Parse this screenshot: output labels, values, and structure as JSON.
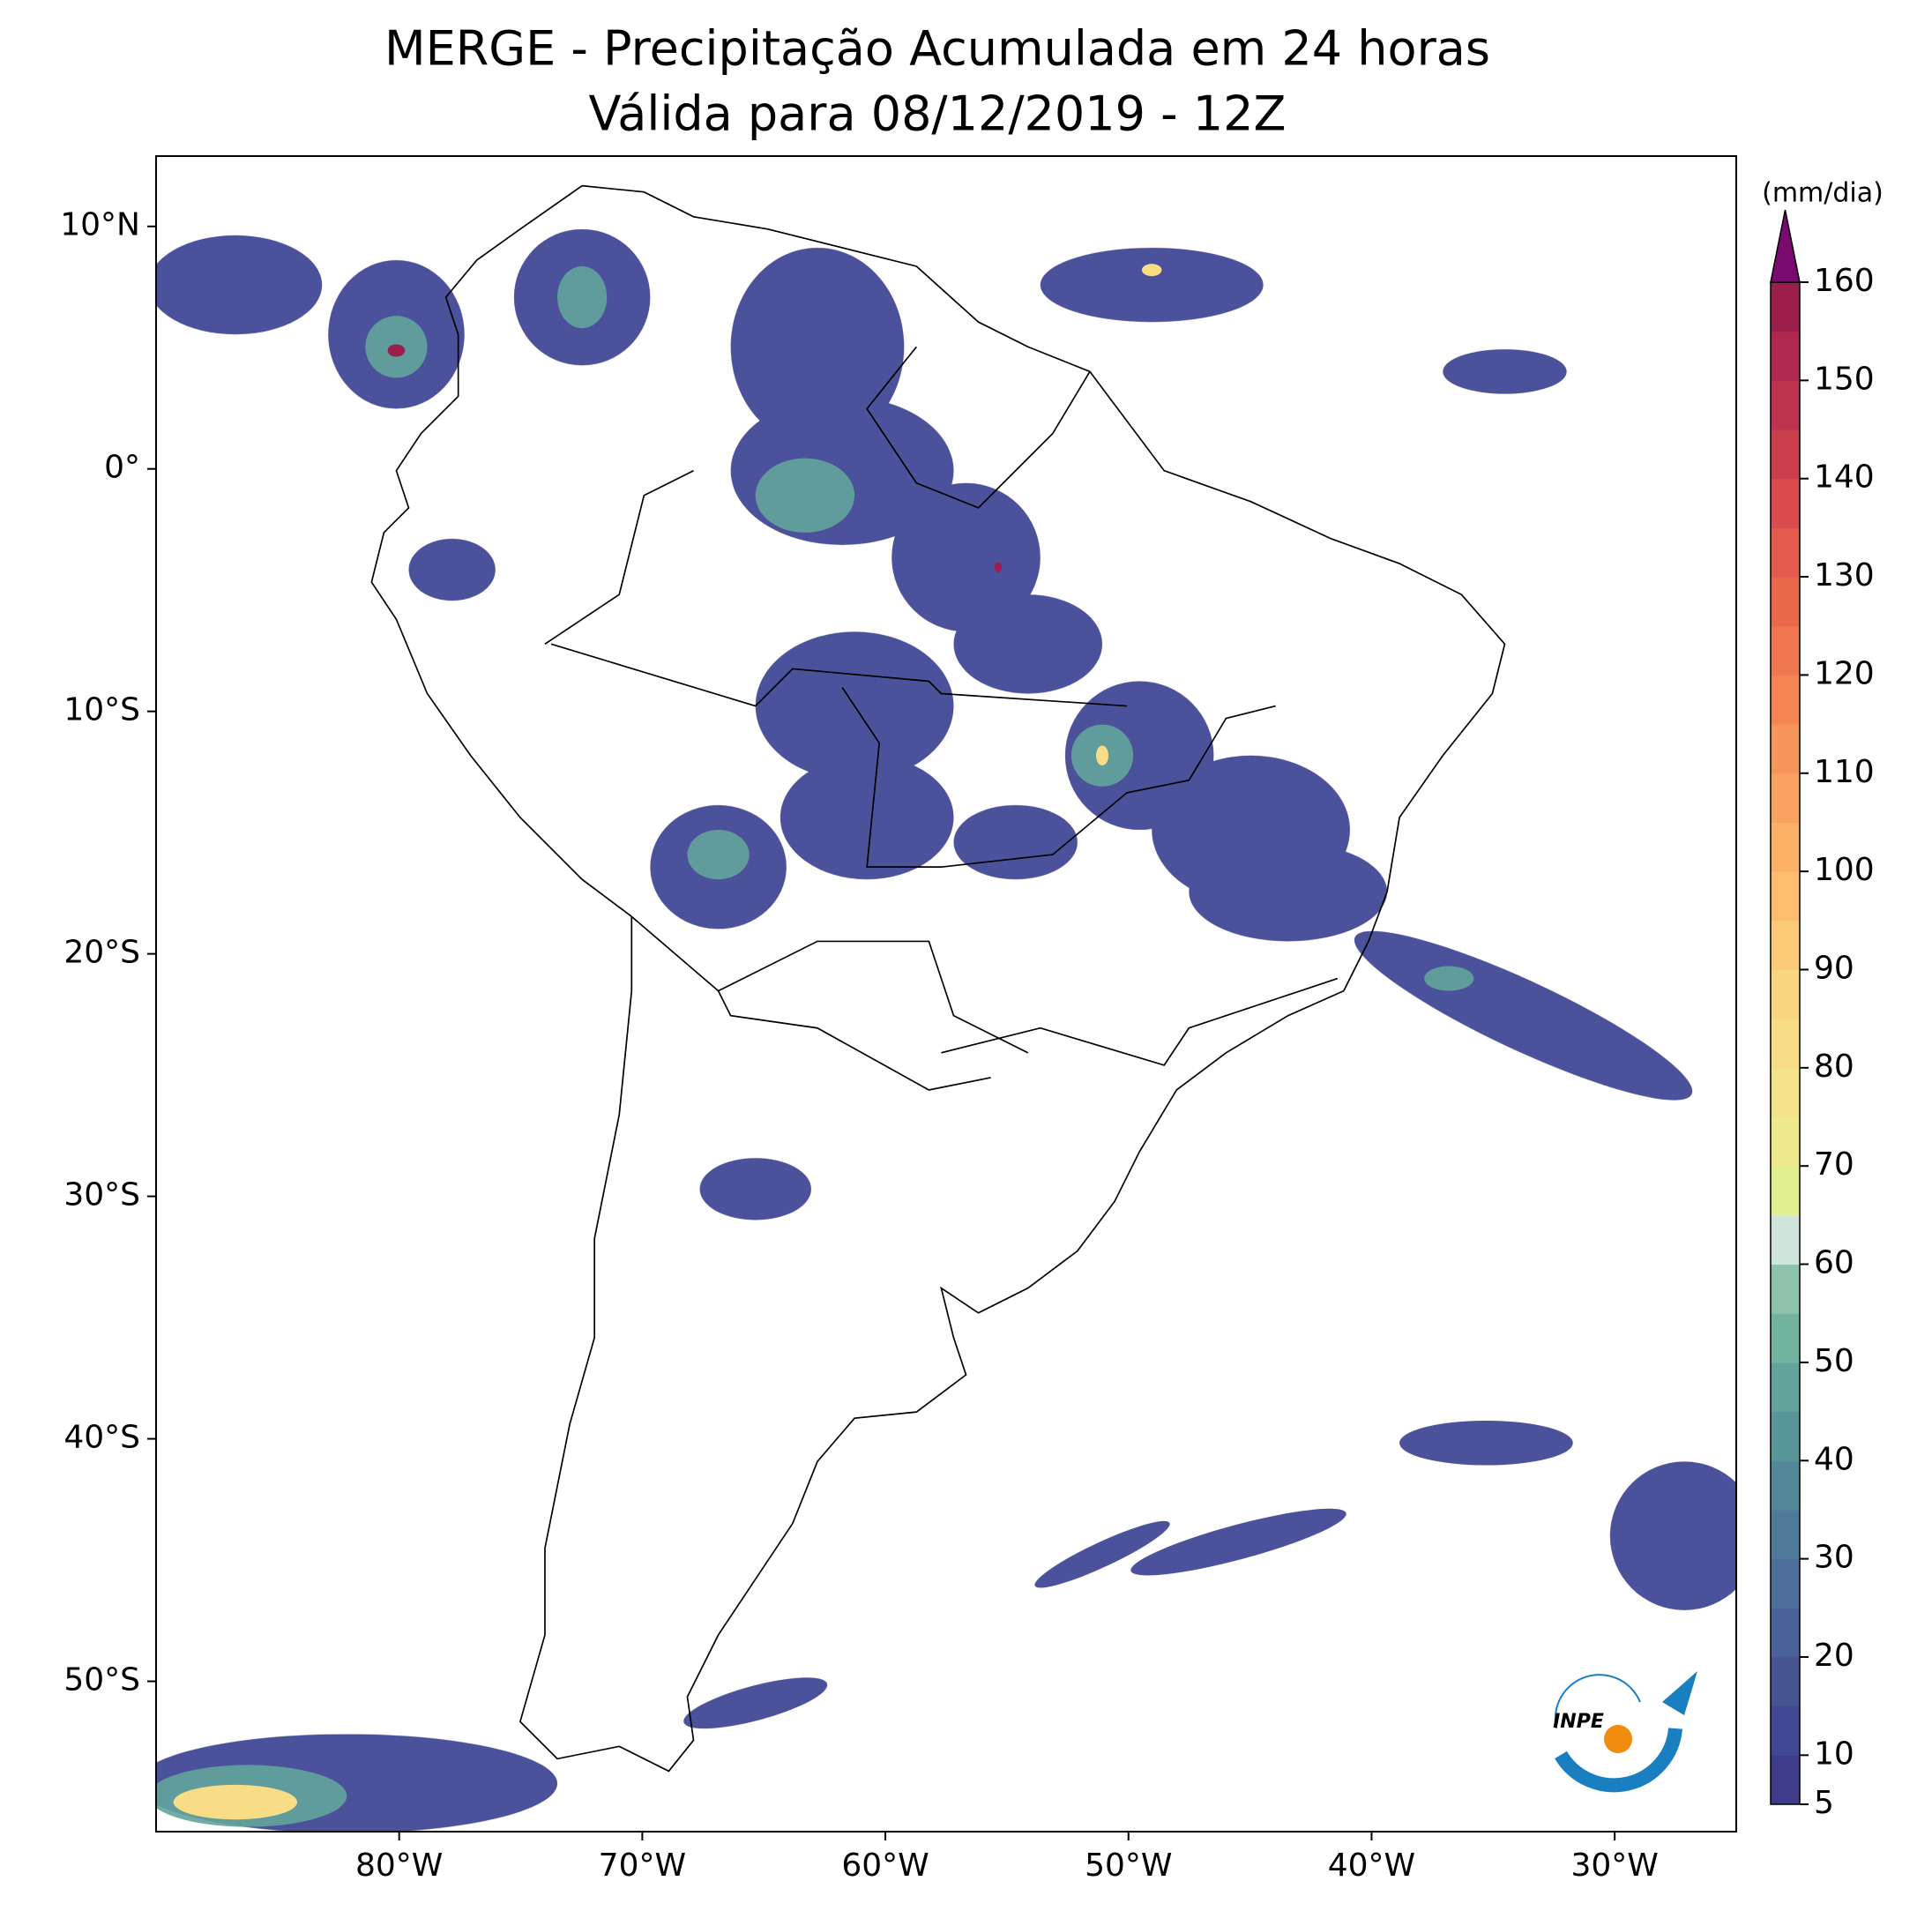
{
  "title": "MERGE - Precipitação Acumulada em 24 horas",
  "subtitle": "Válida para 08/12/2019 - 12Z",
  "map": {
    "xlim": [
      -90,
      -25
    ],
    "ylim": [
      -56.2,
      12.9
    ],
    "xticks": [
      {
        "value": -80,
        "label": "80°W"
      },
      {
        "value": -70,
        "label": "70°W"
      },
      {
        "value": -60,
        "label": "60°W"
      },
      {
        "value": -50,
        "label": "50°W"
      },
      {
        "value": -40,
        "label": "40°W"
      },
      {
        "value": -30,
        "label": "30°W"
      }
    ],
    "yticks": [
      {
        "value": 10,
        "label": "10°N"
      },
      {
        "value": 0,
        "label": "0°"
      },
      {
        "value": -10,
        "label": "10°S"
      },
      {
        "value": -20,
        "label": "20°S"
      },
      {
        "value": -30,
        "label": "30°S"
      },
      {
        "value": -40,
        "label": "40°S"
      },
      {
        "value": -50,
        "label": "50°S"
      }
    ]
  },
  "colorbar": {
    "unit": "(mm/dia)",
    "levels": [
      5,
      10,
      15,
      20,
      25,
      30,
      35,
      40,
      45,
      50,
      55,
      60,
      65,
      70,
      75,
      80,
      85,
      90,
      95,
      100,
      105,
      110,
      115,
      120,
      125,
      130,
      135,
      140,
      145,
      150,
      155,
      160
    ],
    "colors": [
      "#3e3b8a",
      "#434896",
      "#465494",
      "#4a6199",
      "#4d6e9a",
      "#4f7b9a",
      "#52889a",
      "#58969a",
      "#62a49b",
      "#72b49f",
      "#8cc3aa",
      "#cfe5dc",
      "#e3ef8f",
      "#eee98a",
      "#f4e489",
      "#f8dc86",
      "#fad57f",
      "#fcca77",
      "#fcbe6e",
      "#fbb066",
      "#f9a25f",
      "#f79459",
      "#f48553",
      "#f0764f",
      "#ea674c",
      "#e3594b",
      "#d94b4c",
      "#cd3e4d",
      "#bf324e",
      "#b0284e",
      "#9c1e4d"
    ],
    "extend_color": "#7a0a6e",
    "ticks": [
      5,
      10,
      20,
      30,
      40,
      50,
      60,
      70,
      80,
      90,
      100,
      110,
      120,
      130,
      140,
      150,
      160
    ]
  },
  "logo_text": "INPE"
}
